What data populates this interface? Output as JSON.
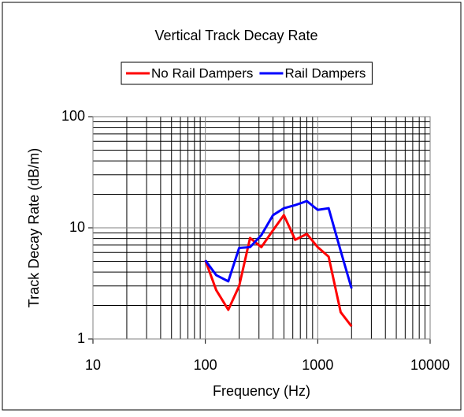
{
  "chart_data": {
    "type": "line",
    "title": "Vertical Track Decay Rate",
    "x_label": "Frequency (Hz)",
    "y_label": "Track Decay Rate (dB/m)",
    "x": [
      100,
      125,
      160,
      200,
      250,
      315,
      400,
      500,
      630,
      800,
      1000,
      1250,
      1600,
      2000
    ],
    "series": [
      {
        "name": "No Rail Dampers",
        "color": "#ff0000",
        "values": [
          5.1,
          2.75,
          1.83,
          3.0,
          8.1,
          6.7,
          9.5,
          13,
          7.8,
          8.8,
          6.7,
          5.5,
          1.74,
          1.3
        ]
      },
      {
        "name": "Rail Dampers",
        "color": "#0000ff",
        "values": [
          5.1,
          3.75,
          3.3,
          6.6,
          6.7,
          8.6,
          13,
          15,
          16,
          17.4,
          14.5,
          15,
          6.2,
          2.85
        ]
      }
    ],
    "xlim": [
      10,
      10000
    ],
    "xticks": [
      10,
      100,
      1000,
      10000
    ],
    "ylim": [
      1,
      100
    ],
    "yticks": [
      1,
      10,
      100
    ],
    "xscale": "log",
    "yscale": "log",
    "grid": true,
    "minor_grid": true,
    "legend": "top"
  }
}
